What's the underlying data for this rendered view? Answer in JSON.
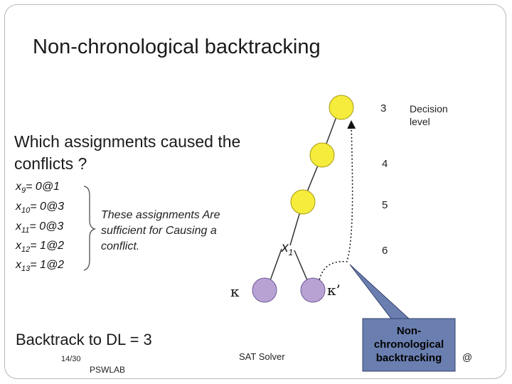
{
  "title": "Non-chronological backtracking",
  "question": "Which assignments caused the conflicts ?",
  "assignments": [
    {
      "var": "x",
      "sub": "9",
      "rest": "= 0@1"
    },
    {
      "var": "x",
      "sub": "10",
      "rest": "= 0@3"
    },
    {
      "var": "x",
      "sub": "11",
      "rest": "= 0@3"
    },
    {
      "var": "x",
      "sub": "12",
      "rest": "= 1@2"
    },
    {
      "var": "x",
      "sub": "13",
      "rest": "= 1@2"
    }
  ],
  "note": "These assignments Are sufficient for Causing a conflict.",
  "decision_level_label": "Decision level",
  "levels": [
    "3",
    "4",
    "5",
    "6"
  ],
  "node_x1": {
    "var": "x",
    "sub": "1"
  },
  "kappa": "κ",
  "kappa_prime": "κ’",
  "backtrack": "Backtrack to DL = 3",
  "callout": "Non-chronological backtracking",
  "slide_number": "14/30",
  "footer_left": "PSWLAB",
  "footer_center": "SAT Solver",
  "footer_right": "@",
  "colors": {
    "decision_node": "#f5ec3c",
    "conflict_node": "#b8a2d4",
    "callout_fill": "#6a7fb0",
    "frame": "#b9b9b9"
  }
}
